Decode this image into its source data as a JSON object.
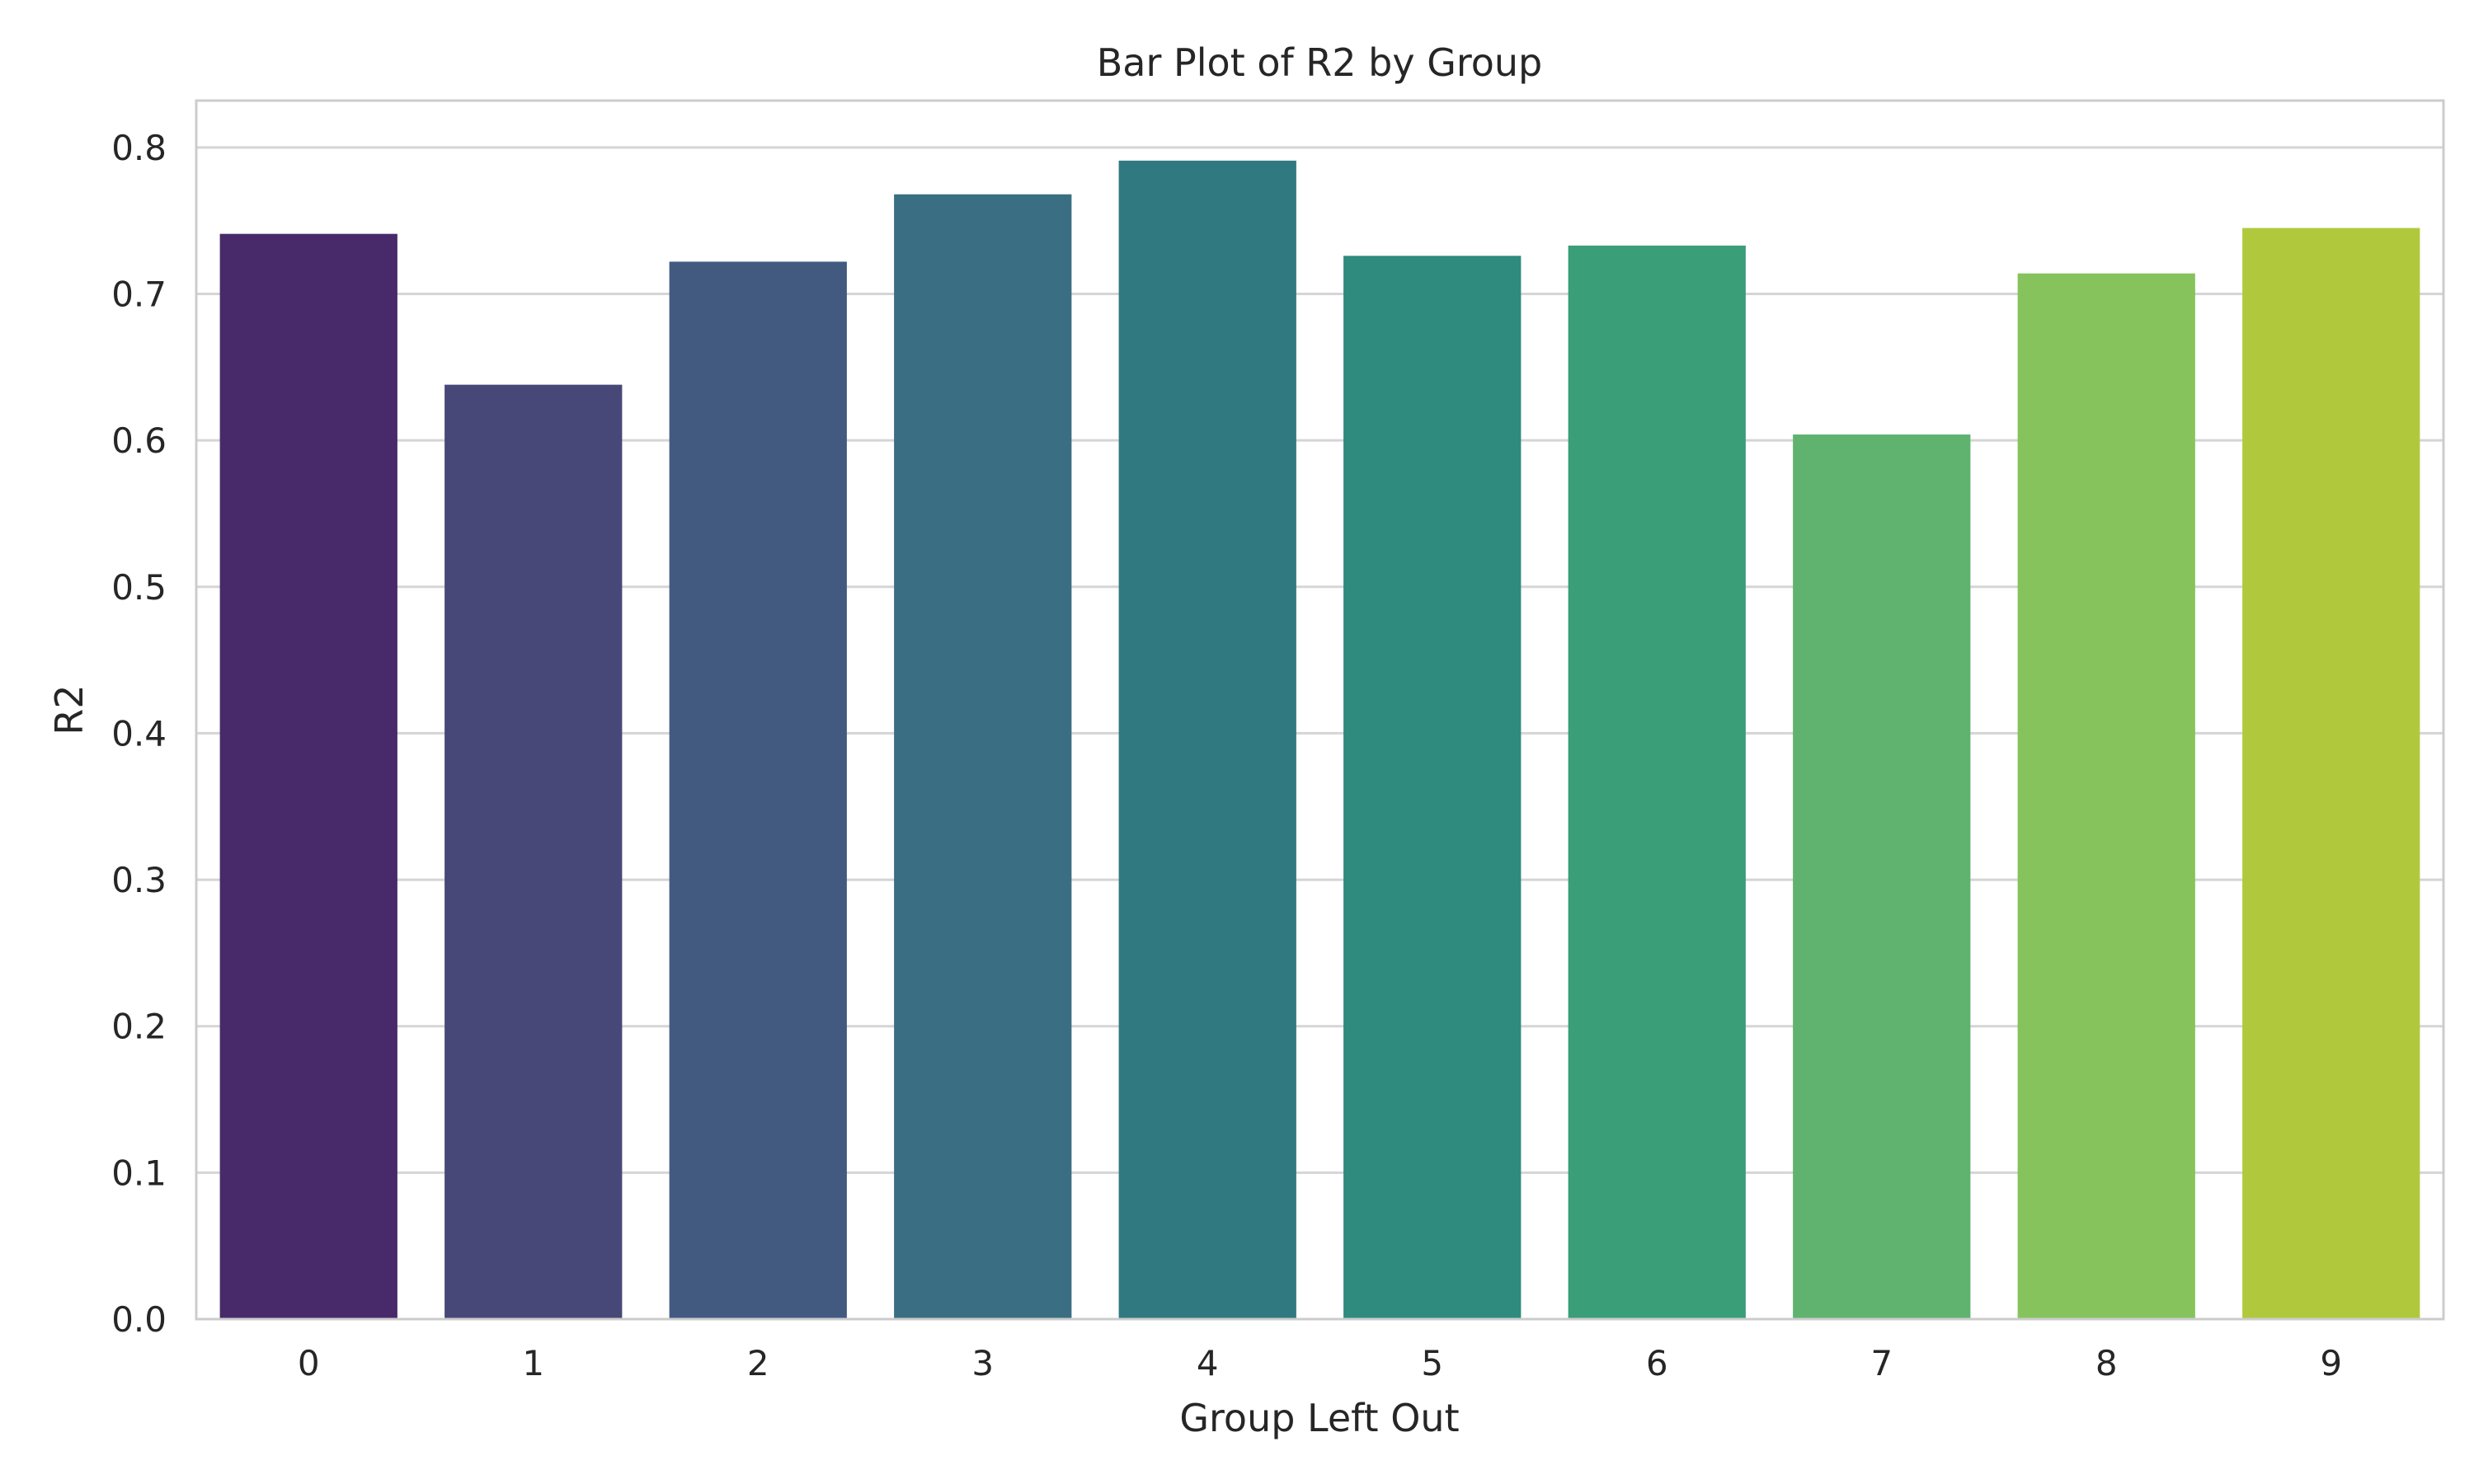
{
  "chart_data": {
    "type": "bar",
    "title": "Bar Plot of R2 by Group",
    "xlabel": "Group Left Out",
    "ylabel": "R2",
    "categories": [
      "0",
      "1",
      "2",
      "3",
      "4",
      "5",
      "6",
      "7",
      "8",
      "9"
    ],
    "values": [
      0.741,
      0.638,
      0.722,
      0.768,
      0.791,
      0.726,
      0.733,
      0.604,
      0.714,
      0.745
    ],
    "bar_colors": [
      "#482A6A",
      "#484878",
      "#425A80",
      "#3A6E82",
      "#307980",
      "#2E8B7E",
      "#3A9E78",
      "#5FB36E",
      "#87C35C",
      "#B0C93C"
    ],
    "ylim": [
      0,
      0.832
    ],
    "yticks": [
      0.0,
      0.1,
      0.2,
      0.3,
      0.4,
      0.5,
      0.6,
      0.7,
      0.8
    ],
    "ytick_labels": [
      "0.0",
      "0.1",
      "0.2",
      "0.3",
      "0.4",
      "0.5",
      "0.6",
      "0.7",
      "0.8"
    ],
    "grid": "horizontal",
    "colors": {
      "gridline": "#D5D5D5",
      "frame": "#CCCCCC",
      "text": "#262626",
      "background": "#FFFFFF"
    }
  }
}
